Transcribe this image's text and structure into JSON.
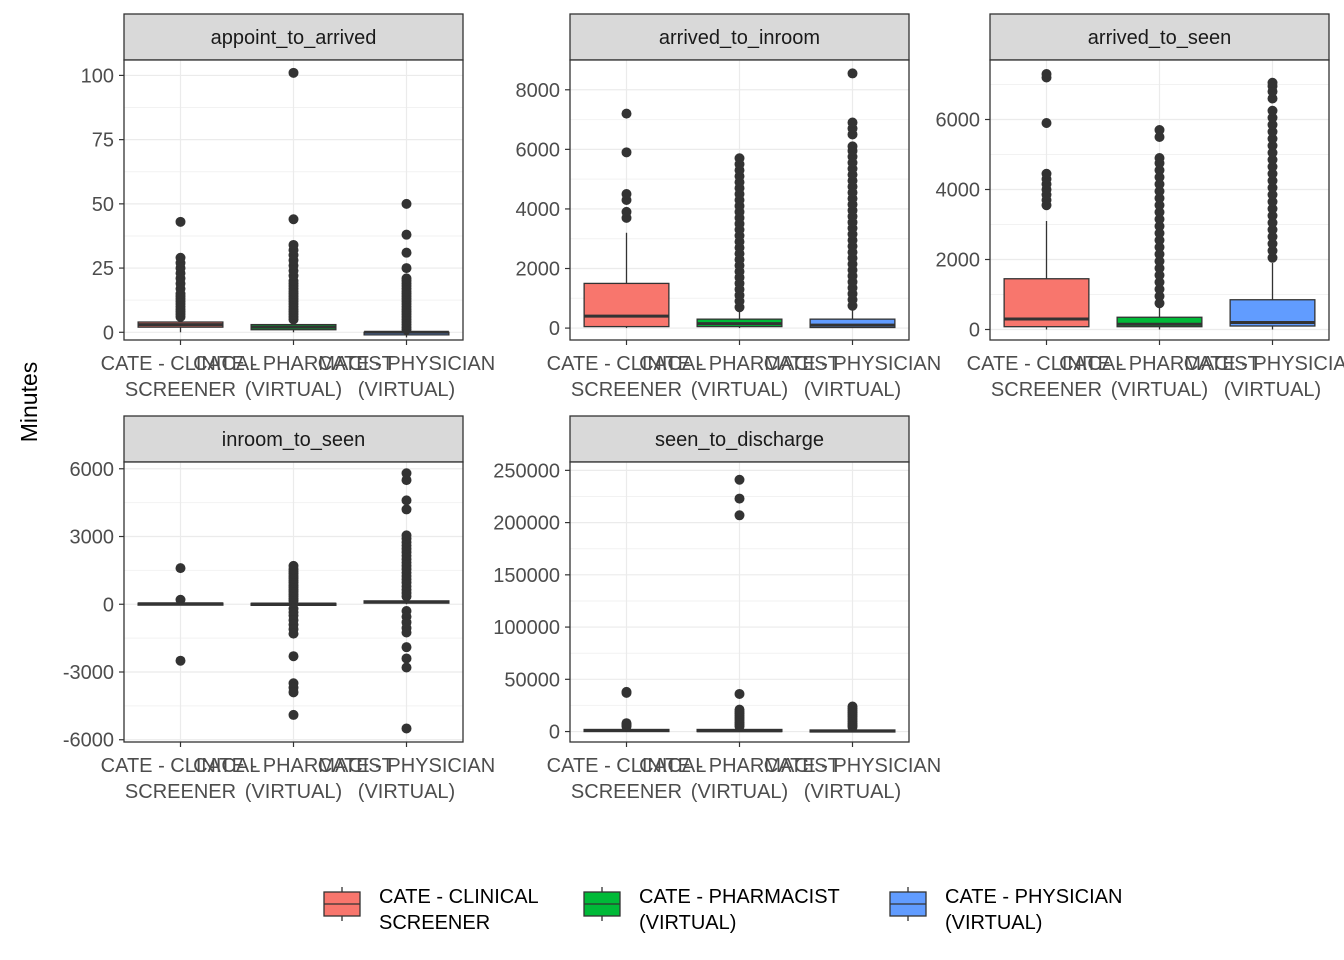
{
  "chart_data": {
    "type": "box",
    "ylabel": "Minutes",
    "categories": [
      "CATE - CLINICAL\nSCREENER",
      "CATE - PHARMACIST\n(VIRTUAL)",
      "CATE - PHYSICIAN\n(VIRTUAL)"
    ],
    "legend": {
      "position": "bottom",
      "entries": [
        {
          "label": "CATE - CLINICAL\nSCREENER",
          "color": "#F8766D"
        },
        {
          "label": "CATE - PHARMACIST\n(VIRTUAL)",
          "color": "#00BA38"
        },
        {
          "label": "CATE - PHYSICIAN\n(VIRTUAL)",
          "color": "#619CFF"
        }
      ]
    },
    "facets": [
      {
        "title": "appoint_to_arrived",
        "ylim": [
          -3,
          106
        ],
        "yticks": [
          0,
          25,
          50,
          75,
          100
        ],
        "boxes": [
          {
            "q1": 2,
            "median": 3,
            "q3": 4,
            "whisker_low": 0,
            "whisker_high": 5,
            "outliers": [
              6,
              7,
              8,
              9,
              10,
              11,
              12,
              13,
              14,
              15,
              17,
              19,
              21,
              23,
              25,
              27,
              29,
              43
            ]
          },
          {
            "q1": 1,
            "median": 2,
            "q3": 3,
            "whisker_low": 0,
            "whisker_high": 4,
            "outliers": [
              5,
              6,
              7,
              8,
              9,
              10,
              11,
              12,
              13,
              14,
              15,
              16,
              17,
              18,
              19,
              20,
              22,
              24,
              26,
              28,
              30,
              32,
              34,
              44,
              101
            ]
          },
          {
            "q1": -1,
            "median": 0,
            "q3": 0,
            "whisker_low": -2,
            "whisker_high": 0,
            "outliers": [
              1,
              2,
              3,
              4,
              5,
              6,
              7,
              8,
              9,
              10,
              11,
              12,
              13,
              14,
              15,
              16,
              17,
              18,
              19,
              20,
              21,
              25,
              31,
              38,
              50
            ]
          }
        ]
      },
      {
        "title": "arrived_to_inroom",
        "ylim": [
          -400,
          9000
        ],
        "yticks": [
          0,
          2000,
          4000,
          6000,
          8000
        ],
        "boxes": [
          {
            "q1": 50,
            "median": 400,
            "q3": 1500,
            "whisker_low": 0,
            "whisker_high": 3200,
            "outliers": [
              3700,
              3900,
              4300,
              4500,
              5900,
              7200
            ]
          },
          {
            "q1": 50,
            "median": 150,
            "q3": 300,
            "whisker_low": 0,
            "whisker_high": 600,
            "outliers": [
              700,
              900,
              1100,
              1300,
              1500,
              1700,
              1900,
              2100,
              2300,
              2500,
              2700,
              2900,
              3100,
              3300,
              3500,
              3700,
              3900,
              4100,
              4300,
              4500,
              4700,
              4900,
              5100,
              5300,
              5500,
              5700
            ]
          },
          {
            "q1": 20,
            "median": 100,
            "q3": 300,
            "whisker_low": 0,
            "whisker_high": 650,
            "outliers": [
              750,
              950,
              1150,
              1350,
              1550,
              1750,
              1950,
              2150,
              2350,
              2550,
              2750,
              2950,
              3150,
              3350,
              3550,
              3750,
              3950,
              4150,
              4350,
              4550,
              4750,
              4950,
              5150,
              5350,
              5550,
              5750,
              5950,
              6100,
              6500,
              6700,
              6900,
              8550
            ]
          }
        ]
      },
      {
        "title": "arrived_to_seen",
        "ylim": [
          -300,
          7700
        ],
        "yticks": [
          0,
          2000,
          4000,
          6000
        ],
        "boxes": [
          {
            "q1": 80,
            "median": 300,
            "q3": 1450,
            "whisker_low": 0,
            "whisker_high": 3100,
            "outliers": [
              3550,
              3700,
              3850,
              4000,
              4150,
              4300,
              4450,
              5900,
              7200,
              7300
            ]
          },
          {
            "q1": 80,
            "median": 150,
            "q3": 350,
            "whisker_low": 0,
            "whisker_high": 650,
            "outliers": [
              750,
              950,
              1150,
              1350,
              1550,
              1750,
              1950,
              2150,
              2350,
              2550,
              2750,
              2950,
              3150,
              3350,
              3550,
              3750,
              3950,
              4150,
              4350,
              4550,
              4750,
              4900,
              5500,
              5700
            ]
          },
          {
            "q1": 100,
            "median": 200,
            "q3": 850,
            "whisker_low": 0,
            "whisker_high": 1900,
            "outliers": [
              2050,
              2250,
              2450,
              2650,
              2850,
              3050,
              3250,
              3450,
              3650,
              3850,
              4050,
              4250,
              4450,
              4650,
              4850,
              5050,
              5250,
              5450,
              5650,
              5850,
              6050,
              6250,
              6600,
              6800,
              6950,
              7050
            ]
          }
        ]
      },
      {
        "title": "inroom_to_seen",
        "ylim": [
          -6100,
          6300
        ],
        "yticks": [
          -6000,
          -3000,
          0,
          3000,
          6000
        ],
        "boxes": [
          {
            "q1": 0,
            "median": 20,
            "q3": 50,
            "whisker_low": -20,
            "whisker_high": 80,
            "outliers": [
              200,
              1600,
              -2500
            ]
          },
          {
            "q1": 0,
            "median": 10,
            "q3": 40,
            "whisker_low": -50,
            "whisker_high": 100,
            "outliers": [
              150,
              250,
              350,
              450,
              550,
              650,
              750,
              850,
              950,
              1050,
              1150,
              1250,
              1350,
              1450,
              1550,
              1700,
              -200,
              -350,
              -500,
              -700,
              -900,
              -1100,
              -1300,
              -2300,
              -3500,
              -3700,
              -3900,
              -4900
            ]
          },
          {
            "q1": 50,
            "median": 100,
            "q3": 150,
            "whisker_low": 0,
            "whisker_high": 250,
            "outliers": [
              350,
              500,
              650,
              800,
              950,
              1100,
              1250,
              1400,
              1550,
              1700,
              1850,
              2000,
              2150,
              2300,
              2450,
              2600,
              2750,
              2900,
              3050,
              4200,
              4600,
              5500,
              5800,
              -300,
              -550,
              -800,
              -1050,
              -1250,
              -1900,
              -2400,
              -2800,
              -5500
            ]
          }
        ]
      },
      {
        "title": "seen_to_discharge",
        "ylim": [
          -10000,
          258000
        ],
        "yticks": [
          0,
          50000,
          100000,
          150000,
          200000,
          250000
        ],
        "boxes": [
          {
            "q1": 0,
            "median": 1000,
            "q3": 2000,
            "whisker_low": 0,
            "whisker_high": 4000,
            "outliers": [
              5000,
              6000,
              7000,
              8000,
              37000,
              38000
            ]
          },
          {
            "q1": 0,
            "median": 800,
            "q3": 2000,
            "whisker_low": 0,
            "whisker_high": 4000,
            "outliers": [
              5000,
              7000,
              9000,
              11000,
              13000,
              15000,
              17000,
              19000,
              21000,
              36000,
              207000,
              223000,
              241000
            ]
          },
          {
            "q1": 0,
            "median": 500,
            "q3": 1500,
            "whisker_low": 0,
            "whisker_high": 3500,
            "outliers": [
              4500,
              6000,
              8000,
              10000,
              12000,
              14000,
              16000,
              18000,
              20000,
              22000,
              24000
            ]
          }
        ]
      }
    ]
  }
}
